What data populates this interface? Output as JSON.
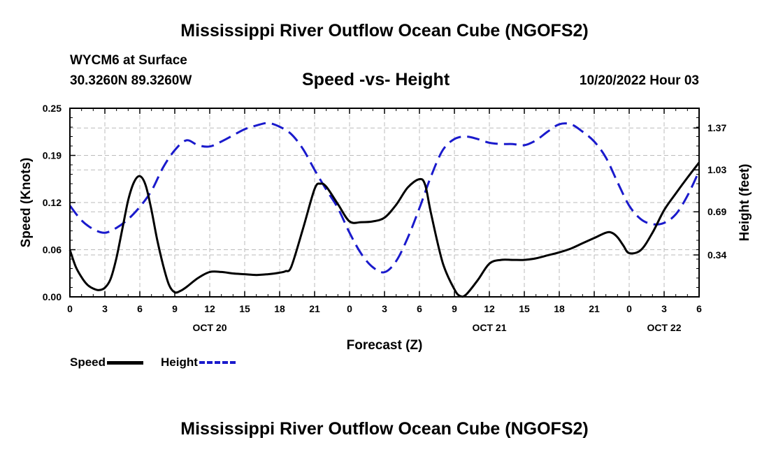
{
  "header": {
    "title": "Mississippi River Outflow Ocean Cube (NGOFS2)",
    "station": "WYCM6 at Surface",
    "coords": "30.3260N  89.3260W",
    "subtitle": "Speed -vs- Height",
    "datetime": "10/20/2022 Hour 03"
  },
  "footer": {
    "title": "Mississippi River Outflow Ocean Cube (NGOFS2)"
  },
  "legend": {
    "speed_label": "Speed",
    "height_label": "Height"
  },
  "colors": {
    "speed": "#000000",
    "height": "#1a1acc",
    "grid": "#bbbbbb"
  },
  "chart_data": {
    "type": "line",
    "xlabel": "Forecast (Z)",
    "ylabel_left": "Speed (Knots)",
    "ylabel_right": "Height (feet)",
    "x_range_hours": [
      0,
      54
    ],
    "y_left_range": [
      0,
      0.25
    ],
    "y_right_range": [
      0,
      1.53
    ],
    "x_tick_hours": [
      0,
      3,
      6,
      9,
      12,
      15,
      18,
      21,
      24,
      27,
      30,
      33,
      36,
      39,
      42,
      45,
      48,
      51,
      54
    ],
    "x_tick_labels": [
      "0",
      "3",
      "6",
      "9",
      "12",
      "15",
      "18",
      "21",
      "0",
      "3",
      "6",
      "9",
      "12",
      "15",
      "18",
      "21",
      "0",
      "3",
      "6"
    ],
    "date_labels": [
      {
        "hour": 12,
        "label": "OCT 20"
      },
      {
        "hour": 36,
        "label": "OCT 21"
      },
      {
        "hour": 51,
        "label": "OCT 22"
      }
    ],
    "y_left_ticks": [
      {
        "value": 0.0,
        "label": "0.00"
      },
      {
        "value": 0.0625,
        "label": "0.06"
      },
      {
        "value": 0.125,
        "label": "0.12"
      },
      {
        "value": 0.1875,
        "label": "0.19"
      },
      {
        "value": 0.25,
        "label": "0.25"
      }
    ],
    "y_right_ticks": [
      {
        "value": 0.34,
        "label": "0.34"
      },
      {
        "value": 0.69,
        "label": "0.69"
      },
      {
        "value": 1.03,
        "label": "1.03"
      },
      {
        "value": 1.37,
        "label": "1.37"
      }
    ],
    "series": [
      {
        "name": "Speed",
        "axis": "left",
        "style": "solid",
        "x": [
          0,
          0.5,
          1,
          1.5,
          2,
          2.5,
          3,
          3.5,
          4,
          4.5,
          5,
          5.5,
          6,
          6.5,
          7,
          7.5,
          8,
          8.5,
          9,
          9.5,
          10,
          11,
          12,
          13,
          14,
          15,
          16,
          17,
          18,
          18.5,
          19,
          20,
          21,
          21.5,
          22,
          23,
          24,
          25,
          26,
          27,
          28,
          29,
          30,
          30.5,
          31,
          32,
          33,
          33.5,
          34,
          35,
          36,
          37,
          38,
          39,
          40,
          41,
          42,
          43,
          44,
          45,
          46,
          46.5,
          47,
          47.5,
          48,
          49,
          50,
          51,
          52,
          53,
          54
        ],
        "y": [
          0.062,
          0.04,
          0.026,
          0.016,
          0.011,
          0.009,
          0.012,
          0.024,
          0.052,
          0.09,
          0.128,
          0.152,
          0.16,
          0.148,
          0.115,
          0.075,
          0.042,
          0.016,
          0.006,
          0.008,
          0.013,
          0.025,
          0.033,
          0.033,
          0.031,
          0.03,
          0.029,
          0.03,
          0.032,
          0.034,
          0.04,
          0.09,
          0.143,
          0.15,
          0.146,
          0.123,
          0.1,
          0.099,
          0.1,
          0.105,
          0.122,
          0.145,
          0.156,
          0.148,
          0.11,
          0.045,
          0.01,
          0.001,
          0.003,
          0.022,
          0.044,
          0.049,
          0.049,
          0.049,
          0.051,
          0.055,
          0.059,
          0.064,
          0.071,
          0.078,
          0.085,
          0.085,
          0.079,
          0.068,
          0.058,
          0.062,
          0.085,
          0.115,
          0.137,
          0.158,
          0.178
        ]
      },
      {
        "name": "Height",
        "axis": "right",
        "style": "dashed",
        "x": [
          0,
          1,
          2,
          3,
          4,
          5,
          6,
          7,
          8,
          9,
          10,
          11,
          12,
          13,
          14,
          15,
          16,
          17,
          18,
          19,
          20,
          21,
          22,
          23,
          24,
          25,
          26,
          27,
          28,
          29,
          30,
          31,
          32,
          33,
          34,
          35,
          36,
          37,
          38,
          39,
          40,
          41,
          42,
          43,
          44,
          45,
          46,
          47,
          48,
          49,
          50,
          51,
          52,
          53,
          54
        ],
        "y": [
          0.74,
          0.62,
          0.55,
          0.52,
          0.56,
          0.63,
          0.73,
          0.86,
          1.05,
          1.19,
          1.27,
          1.23,
          1.22,
          1.26,
          1.31,
          1.36,
          1.39,
          1.41,
          1.38,
          1.32,
          1.2,
          1.03,
          0.87,
          0.72,
          0.52,
          0.35,
          0.24,
          0.2,
          0.29,
          0.48,
          0.72,
          0.98,
          1.19,
          1.28,
          1.3,
          1.28,
          1.25,
          1.24,
          1.24,
          1.23,
          1.27,
          1.34,
          1.4,
          1.4,
          1.34,
          1.26,
          1.13,
          0.93,
          0.74,
          0.63,
          0.59,
          0.6,
          0.67,
          0.82,
          1.02
        ]
      }
    ]
  }
}
